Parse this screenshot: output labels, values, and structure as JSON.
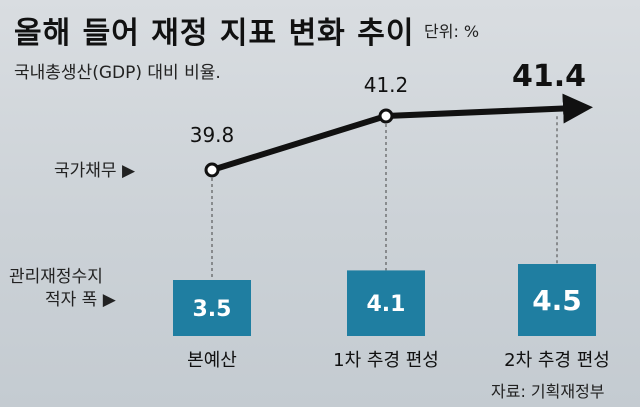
{
  "title": "올해 들어 재정 지표 변화 추이",
  "unit": "단위: %",
  "subtitle": "국내총생산(GDP) 대비 비율.",
  "source": "자료: 기획재정부",
  "colors": {
    "bar": "#1f7ea1",
    "line": "#111111",
    "bar_text": "#ffffff",
    "guide": "#444444"
  },
  "chart_data": {
    "type": "bar+line",
    "categories": [
      "본예산",
      "1차 추경 편성",
      "2차 추경 편성"
    ],
    "series": [
      {
        "name": "국가채무",
        "type": "line",
        "values": [
          39.8,
          41.2,
          41.4
        ],
        "labels": [
          "39.8",
          "41.2",
          "41.4"
        ]
      },
      {
        "name": "관리재정수지 적자 폭",
        "type": "bar",
        "values": [
          3.5,
          4.1,
          4.5
        ],
        "labels": [
          "3.5",
          "4.1",
          "4.5"
        ]
      }
    ]
  },
  "legend": {
    "debt": "국가채무 ▶",
    "deficit_line1": "관리재정수지",
    "deficit_line2": "적자 폭 ▶"
  }
}
